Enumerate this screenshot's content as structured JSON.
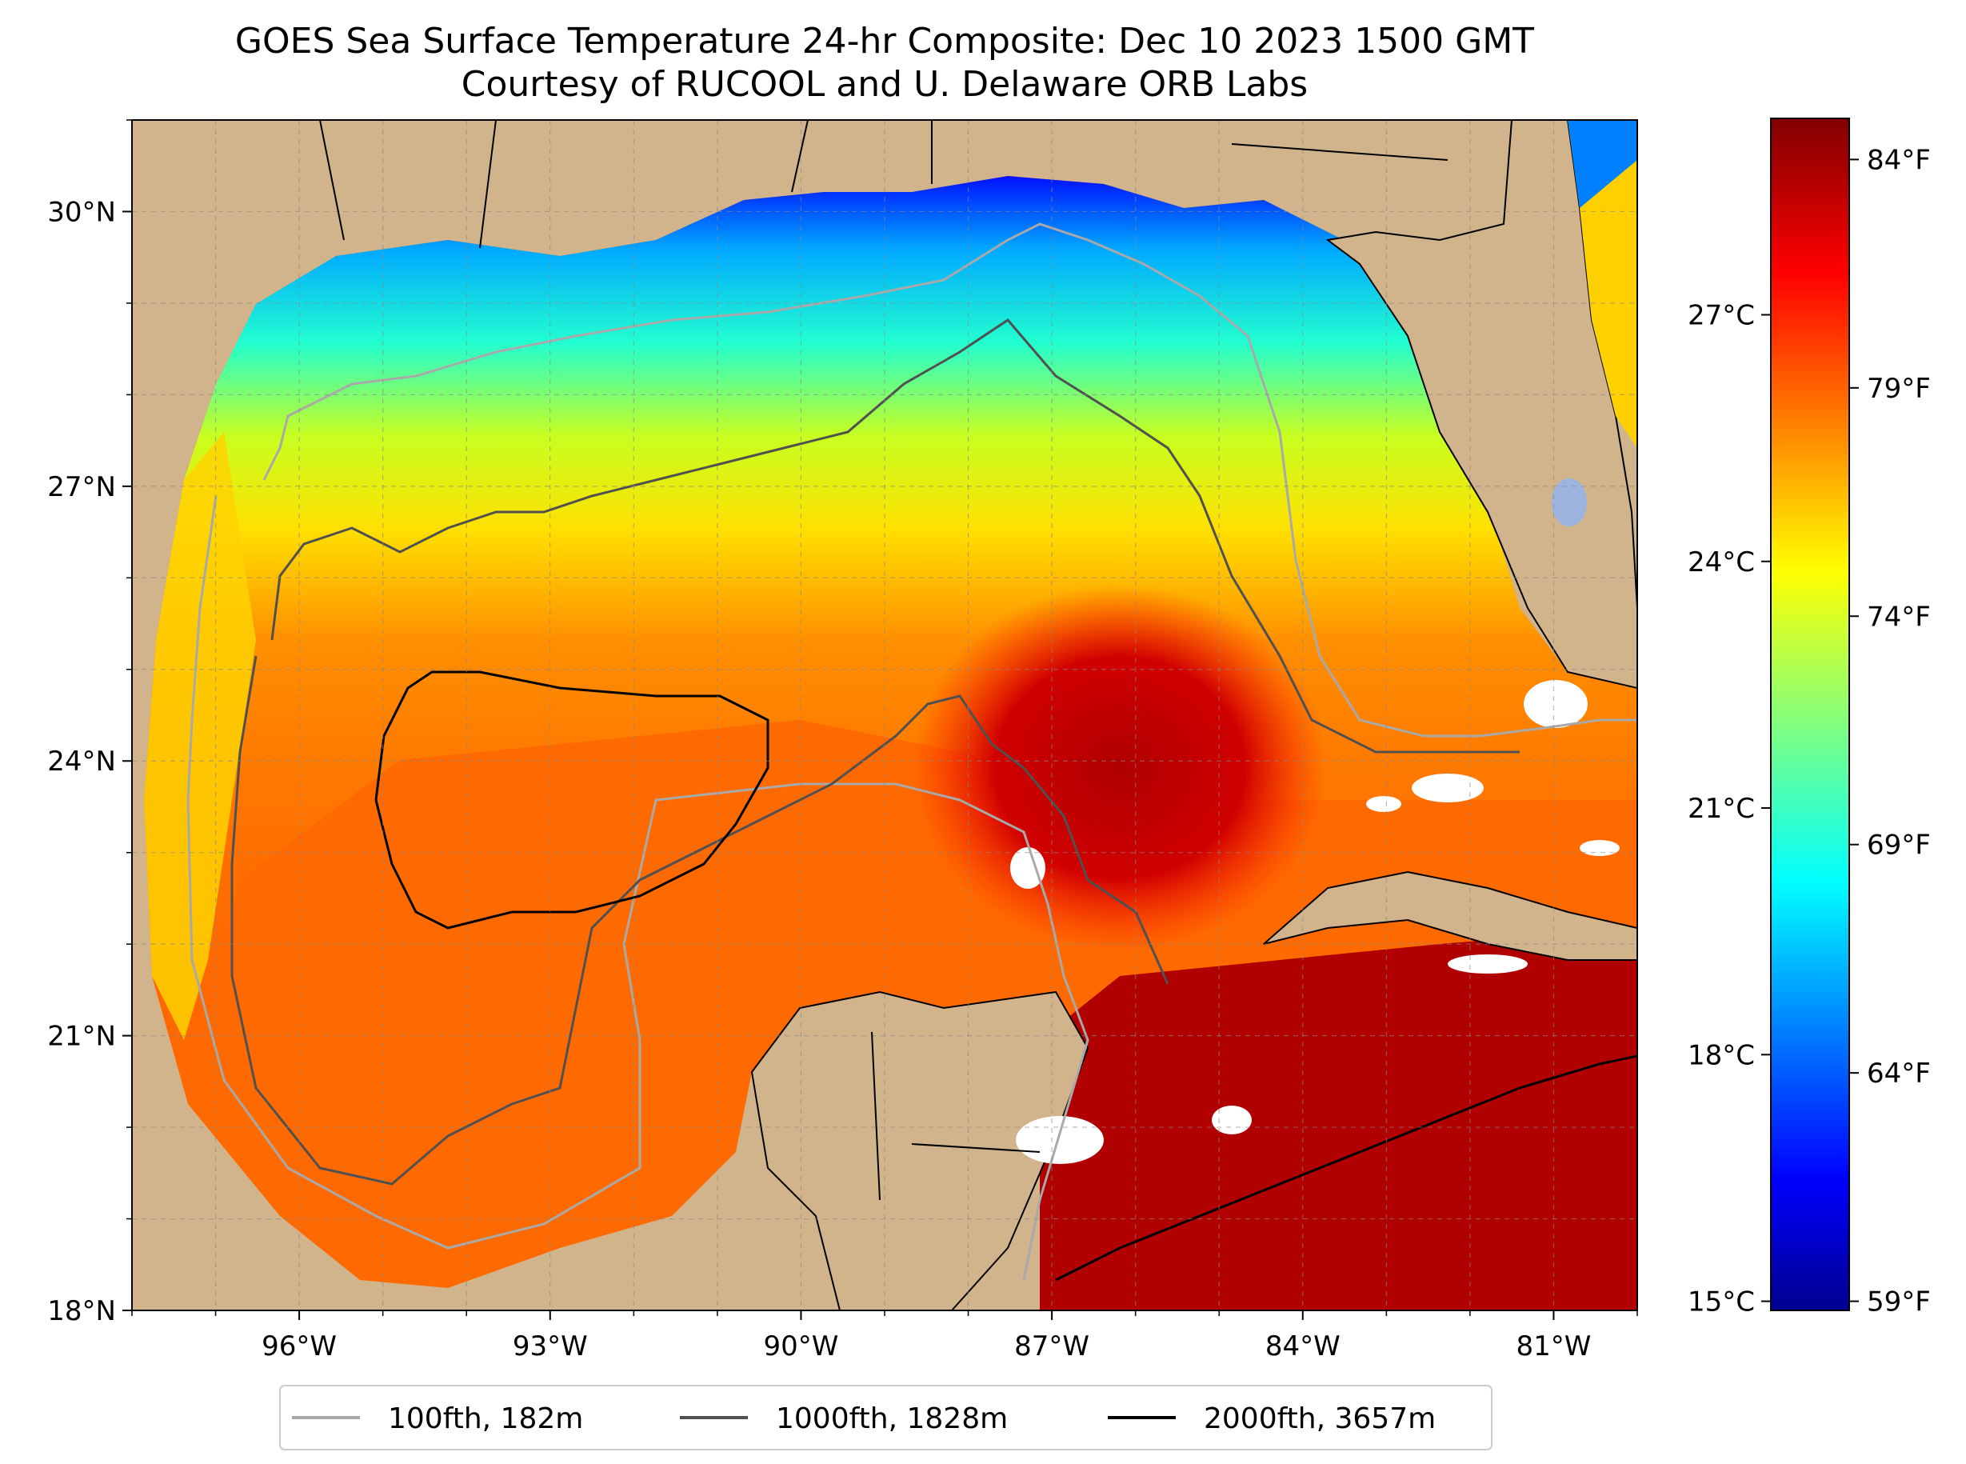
{
  "title": {
    "line1": "GOES Sea Surface Temperature 24-hr Composite: Dec 10 2023 1500 GMT",
    "line2": "Courtesy of RUCOOL and U. Delaware ORB Labs"
  },
  "map": {
    "lon_range": [
      -98,
      -80
    ],
    "lat_range": [
      18,
      31
    ],
    "x_ticks": [
      {
        "value": -96,
        "label": "96°W"
      },
      {
        "value": -93,
        "label": "93°W"
      },
      {
        "value": -90,
        "label": "90°W"
      },
      {
        "value": -87,
        "label": "87°W"
      },
      {
        "value": -84,
        "label": "84°W"
      },
      {
        "value": -81,
        "label": "81°W"
      }
    ],
    "y_ticks": [
      {
        "value": 18,
        "label": "18°N"
      },
      {
        "value": 21,
        "label": "21°N"
      },
      {
        "value": 24,
        "label": "24°N"
      },
      {
        "value": 27,
        "label": "27°N"
      },
      {
        "value": 30,
        "label": "30°N"
      }
    ],
    "gridlines": true,
    "colors": {
      "land": "#d2b48c",
      "lakes": "#9db3e0",
      "no_data": "#ffffff",
      "coastline": "#000000"
    }
  },
  "colorbar": {
    "colormap": "jet",
    "range_f": [
      58.8,
      84.9
    ],
    "celsius_ticks": [
      {
        "value": 15,
        "label": "15°C"
      },
      {
        "value": 18,
        "label": "18°C"
      },
      {
        "value": 21,
        "label": "21°C"
      },
      {
        "value": 24,
        "label": "24°C"
      },
      {
        "value": 27,
        "label": "27°C"
      }
    ],
    "fahrenheit_ticks": [
      {
        "value": 59,
        "label": "59°F"
      },
      {
        "value": 64,
        "label": "64°F"
      },
      {
        "value": 69,
        "label": "69°F"
      },
      {
        "value": 74,
        "label": "74°F"
      },
      {
        "value": 79,
        "label": "79°F"
      },
      {
        "value": 84,
        "label": "84°F"
      }
    ]
  },
  "legend": {
    "position": "bottom-center",
    "items": [
      {
        "label": "100fth, 182m",
        "color": "#a9a9a9"
      },
      {
        "label": "1000fth, 1828m",
        "color": "#505050"
      },
      {
        "label": "2000fth, 3657m",
        "color": "#000000"
      }
    ]
  }
}
